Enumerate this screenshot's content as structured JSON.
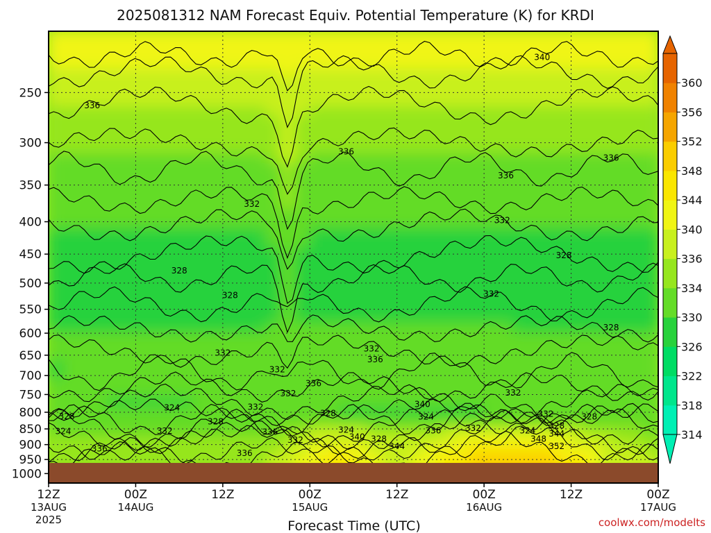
{
  "colors": {
    "ground": "#8b4a2b",
    "frame": "#000000",
    "scale": [
      "#00f0b4",
      "#00e68c",
      "#00dc64",
      "#28d23c",
      "#64dc28",
      "#96e61e",
      "#c8f01e",
      "#f0f514",
      "#fae600",
      "#facd00",
      "#f5a500",
      "#f08200",
      "#e66400"
    ]
  },
  "chart_data": {
    "type": "heatmap",
    "title": "2025081312 NAM Forecast Equiv. Potential Temperature (K) for KRDI",
    "xlabel": "Forecast Time (UTC)",
    "ylabel": "",
    "credit": "coolwx.com/modelts",
    "x_ticks": [
      {
        "hour": 0,
        "line1": "12Z",
        "line2": "13AUG",
        "line3": "2025"
      },
      {
        "hour": 12,
        "line1": "00Z",
        "line2": "14AUG",
        "line3": ""
      },
      {
        "hour": 24,
        "line1": "12Z",
        "line2": "",
        "line3": ""
      },
      {
        "hour": 36,
        "line1": "00Z",
        "line2": "15AUG",
        "line3": ""
      },
      {
        "hour": 48,
        "line1": "12Z",
        "line2": "",
        "line3": ""
      },
      {
        "hour": 60,
        "line1": "00Z",
        "line2": "16AUG",
        "line3": ""
      },
      {
        "hour": 72,
        "line1": "12Z",
        "line2": "",
        "line3": ""
      },
      {
        "hour": 84,
        "line1": "00Z",
        "line2": "17AUG",
        "line3": ""
      }
    ],
    "xlim": [
      0,
      84
    ],
    "y_ticks": [
      250,
      300,
      350,
      400,
      450,
      500,
      550,
      600,
      650,
      700,
      750,
      800,
      850,
      900,
      950,
      1000
    ],
    "ylim": [
      1035,
      200
    ],
    "y_scale": "log-pressure",
    "grid": true,
    "colorbar": {
      "levels": [
        314,
        318,
        322,
        326,
        330,
        334,
        336,
        340,
        344,
        348,
        352,
        356,
        360
      ]
    },
    "surface_pressure": 962,
    "contour_labels": [
      {
        "text": "340",
        "hour": 68,
        "p": 220
      },
      {
        "text": "336",
        "hour": 6,
        "p": 262
      },
      {
        "text": "336",
        "hour": 41,
        "p": 310
      },
      {
        "text": "336",
        "hour": 63,
        "p": 338
      },
      {
        "text": "336",
        "hour": 77.5,
        "p": 317
      },
      {
        "text": "332",
        "hour": 28,
        "p": 375
      },
      {
        "text": "332",
        "hour": 62.5,
        "p": 398
      },
      {
        "text": "328",
        "hour": 18,
        "p": 478
      },
      {
        "text": "328",
        "hour": 25,
        "p": 523
      },
      {
        "text": "328",
        "hour": 71,
        "p": 452
      },
      {
        "text": "332",
        "hour": 61,
        "p": 520
      },
      {
        "text": "328",
        "hour": 77.5,
        "p": 588
      },
      {
        "text": "332",
        "hour": 44.5,
        "p": 635
      },
      {
        "text": "336",
        "hour": 45,
        "p": 660
      },
      {
        "text": "332",
        "hour": 24,
        "p": 645
      },
      {
        "text": "332",
        "hour": 31.5,
        "p": 685
      },
      {
        "text": "336",
        "hour": 36.5,
        "p": 720
      },
      {
        "text": "332",
        "hour": 33,
        "p": 747
      },
      {
        "text": "332",
        "hour": 64,
        "p": 745
      },
      {
        "text": "324",
        "hour": 17,
        "p": 787
      },
      {
        "text": "332",
        "hour": 28.5,
        "p": 785
      },
      {
        "text": "328",
        "hour": 38.5,
        "p": 803
      },
      {
        "text": "340",
        "hour": 51.5,
        "p": 777
      },
      {
        "text": "324",
        "hour": 52,
        "p": 813
      },
      {
        "text": "328",
        "hour": 2.5,
        "p": 812
      },
      {
        "text": "328",
        "hour": 23,
        "p": 828
      },
      {
        "text": "332",
        "hour": 68.5,
        "p": 805
      },
      {
        "text": "328",
        "hour": 74.5,
        "p": 813
      },
      {
        "text": "328",
        "hour": 70,
        "p": 840
      },
      {
        "text": "324",
        "hour": 2,
        "p": 858
      },
      {
        "text": "332",
        "hour": 16,
        "p": 856
      },
      {
        "text": "336",
        "hour": 30.5,
        "p": 860
      },
      {
        "text": "324",
        "hour": 41,
        "p": 853
      },
      {
        "text": "336",
        "hour": 53,
        "p": 855
      },
      {
        "text": "332",
        "hour": 58.5,
        "p": 848
      },
      {
        "text": "324",
        "hour": 66,
        "p": 855
      },
      {
        "text": "344",
        "hour": 70,
        "p": 865
      },
      {
        "text": "332",
        "hour": 34,
        "p": 885
      },
      {
        "text": "340",
        "hour": 42.5,
        "p": 875
      },
      {
        "text": "328",
        "hour": 45.5,
        "p": 882
      },
      {
        "text": "348",
        "hour": 67.5,
        "p": 882
      },
      {
        "text": "344",
        "hour": 48,
        "p": 905
      },
      {
        "text": "352",
        "hour": 70,
        "p": 905
      },
      {
        "text": "336",
        "hour": 7,
        "p": 913
      },
      {
        "text": "336",
        "hour": 27,
        "p": 928
      }
    ]
  }
}
